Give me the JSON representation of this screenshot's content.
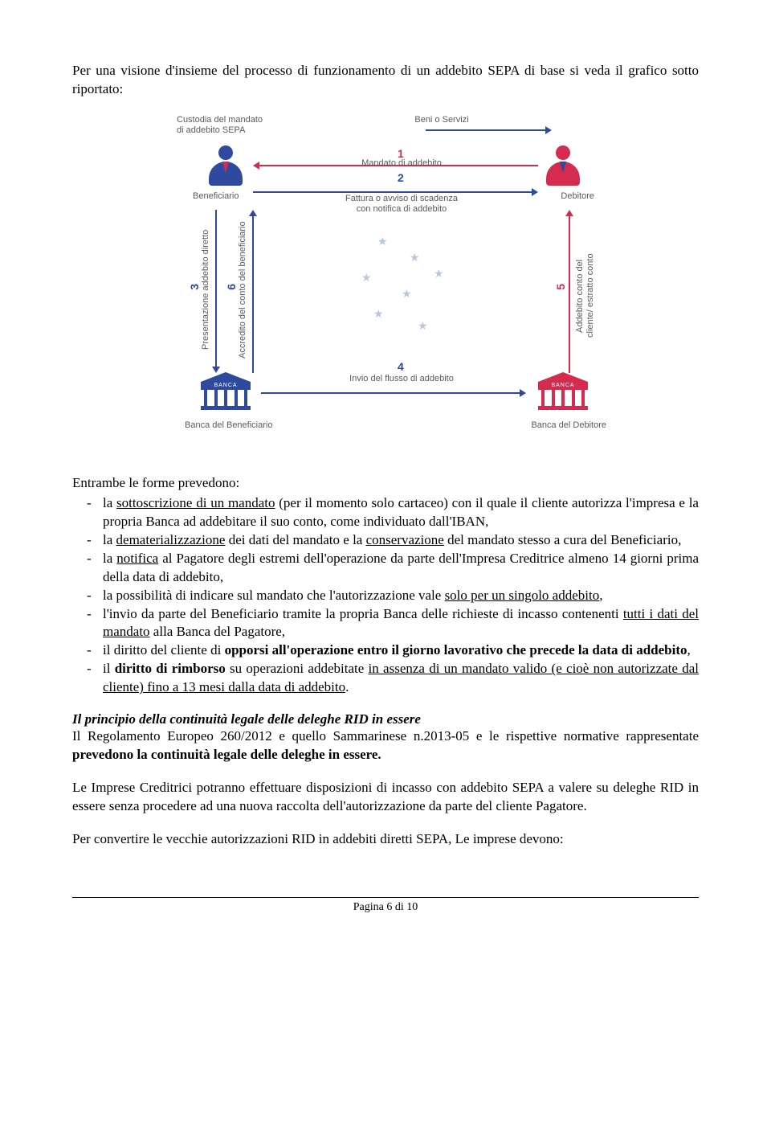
{
  "colors": {
    "blue": "#2e4a9e",
    "red": "#d52b4f",
    "gray": "#5a5a5a",
    "star": "#8aa3c4",
    "text": "#000000",
    "bg": "#ffffff"
  },
  "intro": "Per una visione d'insieme del processo di funzionamento di un addebito SEPA di base si veda il grafico sotto riportato:",
  "diagram": {
    "top_left_label": "Custodia del mandato\ndi addebito SEPA",
    "top_right_label": "Beni o Servizi",
    "beneficiario": "Beneficiario",
    "debitore": "Debitore",
    "banca_beneficiario": "Banca del Beneficiario",
    "banca_debitore": "Banca del Debitore",
    "step1_num": "1",
    "step1_label": "Mandato di addebito",
    "step2_num": "2",
    "step2_label": "Fattura o avviso di scadenza\ncon notifica di addebito",
    "step3_num": "3",
    "step3_label": "Presentazione addebito diretto",
    "step4_num": "4",
    "step4_label": "Invio del flusso di addebito",
    "step5_num": "5",
    "step5_label": "Addebito conto del\ncliente/ estratto conto",
    "step6_num": "6",
    "step6_label": "Accredito del conto del beneficiario",
    "banca_word": "BANCA"
  },
  "lead": "Entrambe le forme prevedono:",
  "bullets": {
    "b1_pre": "la ",
    "b1_u": "sottoscrizione di un mandato",
    "b1_post": " (per il momento solo cartaceo) con il quale il cliente autorizza l'impresa e la propria Banca ad addebitare il suo conto, come individuato dall'IBAN,",
    "b2_pre": "la ",
    "b2_u1": "dematerializzazione",
    "b2_mid": " dei dati del mandato e la ",
    "b2_u2": "conservazione",
    "b2_post": " del mandato stesso a cura del Beneficiario,",
    "b3_pre": "la ",
    "b3_u": "notifica",
    "b3_post": " al Pagatore degli estremi dell'operazione da parte dell'Impresa Creditrice almeno 14 giorni prima della data di addebito,",
    "b4_pre": "la possibilità di indicare sul mandato che l'autorizzazione vale ",
    "b4_u": "solo per un singolo addebito",
    "b4_post": ",",
    "b5_pre": "l'invio da parte del Beneficiario tramite la propria Banca delle richieste di incasso contenenti ",
    "b5_u": "tutti i dati del mandato",
    "b5_post": " alla Banca del Pagatore,",
    "b6_pre": "il diritto del cliente di ",
    "b6_b": "opporsi all'operazione entro il giorno lavorativo che precede la data di addebito",
    "b6_post": ",",
    "b7_pre": "il ",
    "b7_b": "diritto di rimborso",
    "b7_mid": " su operazioni addebitate ",
    "b7_u": "in assenza di un mandato valido (e cioè non autorizzate dal cliente) fino a 13 mesi dalla data di addebito",
    "b7_post": "."
  },
  "section_title": "Il principio della continuità legale delle deleghe RID in essere",
  "para1_pre": "Il Regolamento Europeo 260/2012 e quello Sammarinese n.2013-05 e le rispettive normative rappresentate ",
  "para1_b": "prevedono la continuità legale delle deleghe in essere.",
  "para2": "Le Imprese Creditrici potranno effettuare disposizioni di incasso con addebito SEPA a valere su deleghe RID in essere senza procedere ad una nuova raccolta dell'autorizzazione da parte del cliente Pagatore.",
  "para3": "Per convertire le vecchie autorizzazioni RID in addebiti diretti SEPA, Le imprese devono:",
  "footer": "Pagina 6 di 10"
}
